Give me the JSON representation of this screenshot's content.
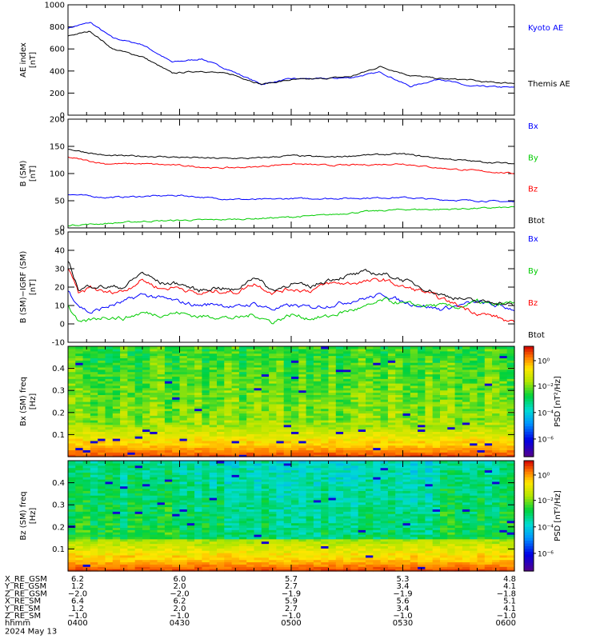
{
  "colors": {
    "kyoto": "#0000ff",
    "themis": "#000000",
    "bx": "#0000ff",
    "by": "#00cc00",
    "bz": "#ff0000",
    "btot": "#000000"
  },
  "time_axis": {
    "label": "hhmm",
    "date": "2024 May 13",
    "ticks": [
      "0400",
      "0430",
      "0500",
      "0530",
      "0600"
    ],
    "range": [
      "04:00",
      "06:00"
    ]
  },
  "ephemeris": [
    {
      "label": "X_RE_GSM",
      "values": [
        "6.2",
        "6.0",
        "5.7",
        "5.3",
        "4.8"
      ]
    },
    {
      "label": "Y_RE_GSM",
      "values": [
        "1.2",
        "2.0",
        "2.7",
        "3.4",
        "4.1"
      ]
    },
    {
      "label": "Z_RE_GSM",
      "values": [
        "−2.0",
        "−2.0",
        "−1.9",
        "−1.9",
        "−1.8"
      ]
    },
    {
      "label": "X_RE_SM",
      "values": [
        "6.4",
        "6.2",
        "5.9",
        "5.6",
        "5.1"
      ]
    },
    {
      "label": "Y_RE_SM",
      "values": [
        "1.2",
        "2.0",
        "2.7",
        "3.4",
        "4.1"
      ]
    },
    {
      "label": "Z_RE_SM",
      "values": [
        "−1.0",
        "−1.0",
        "−1.0",
        "−1.0",
        "−1.0"
      ]
    }
  ],
  "chart_data": [
    {
      "type": "line",
      "ylabel": "AE index [nT]",
      "ylim": [
        0,
        1000
      ],
      "yticks": [
        0,
        200,
        400,
        600,
        800,
        1000
      ],
      "x_minutes": [
        0,
        6,
        12,
        20,
        28,
        36,
        44,
        52,
        60,
        68,
        76,
        84,
        92,
        100,
        108,
        112,
        120
      ],
      "series": [
        {
          "name": "Kyoto AE",
          "color": "blue",
          "values": [
            790,
            840,
            700,
            640,
            480,
            510,
            400,
            280,
            330,
            330,
            340,
            390,
            260,
            330,
            260,
            260,
            250
          ]
        },
        {
          "name": "Themis AE",
          "color": "black",
          "values": [
            720,
            760,
            600,
            530,
            380,
            400,
            370,
            280,
            320,
            330,
            350,
            440,
            360,
            330,
            320,
            300,
            290
          ]
        }
      ]
    },
    {
      "type": "line",
      "ylabel": "B (SM) [nT]",
      "ylim": [
        0,
        200
      ],
      "yticks": [
        0,
        50,
        100,
        150,
        200
      ],
      "x_minutes": [
        0,
        10,
        20,
        30,
        40,
        50,
        60,
        70,
        80,
        90,
        100,
        110,
        120
      ],
      "series": [
        {
          "name": "Bx",
          "color": "blue",
          "values": [
            62,
            56,
            58,
            60,
            54,
            52,
            54,
            54,
            55,
            56,
            52,
            50,
            48
          ]
        },
        {
          "name": "By",
          "color": "green",
          "values": [
            5,
            8,
            12,
            14,
            15,
            17,
            20,
            24,
            30,
            34,
            34,
            36,
            38
          ]
        },
        {
          "name": "Bz",
          "color": "red",
          "values": [
            130,
            118,
            118,
            115,
            110,
            112,
            118,
            115,
            116,
            118,
            110,
            105,
            100
          ]
        },
        {
          "name": "Btot",
          "color": "black",
          "values": [
            145,
            133,
            132,
            130,
            128,
            128,
            133,
            130,
            134,
            136,
            128,
            122,
            118
          ]
        }
      ]
    },
    {
      "type": "line",
      "ylabel": "B (SM)−IGRF (SM) [nT]",
      "ylim": [
        -10,
        50
      ],
      "yticks": [
        -10,
        0,
        10,
        20,
        30,
        40,
        50
      ],
      "x_minutes": [
        0,
        3,
        6,
        10,
        15,
        20,
        25,
        30,
        35,
        40,
        45,
        50,
        55,
        60,
        65,
        70,
        75,
        80,
        85,
        90,
        95,
        100,
        105,
        110,
        115,
        120
      ],
      "series": [
        {
          "name": "Bx",
          "color": "blue",
          "values": [
            18,
            10,
            6,
            9,
            12,
            16,
            14,
            12,
            10,
            11,
            9,
            11,
            8,
            10,
            9,
            10,
            12,
            14,
            16,
            12,
            10,
            8,
            10,
            12,
            10,
            8
          ]
        },
        {
          "name": "By",
          "color": "green",
          "values": [
            10,
            0,
            2,
            4,
            3,
            6,
            5,
            6,
            4,
            4,
            3,
            5,
            1,
            5,
            3,
            4,
            7,
            9,
            13,
            11,
            10,
            10,
            9,
            12,
            10,
            12
          ]
        },
        {
          "name": "Bz",
          "color": "red",
          "values": [
            30,
            16,
            20,
            17,
            18,
            24,
            19,
            20,
            16,
            18,
            17,
            22,
            17,
            19,
            18,
            22,
            22,
            23,
            24,
            20,
            18,
            14,
            10,
            6,
            4,
            0
          ]
        },
        {
          "name": "Btot",
          "color": "black",
          "values": [
            35,
            18,
            21,
            20,
            20,
            28,
            22,
            22,
            18,
            20,
            18,
            26,
            18,
            22,
            20,
            24,
            26,
            28,
            27,
            24,
            20,
            16,
            14,
            12,
            12,
            10
          ]
        }
      ]
    },
    {
      "type": "heatmap",
      "ylabel": "Bx (SM) freq [Hz]",
      "yticks": [
        "0.1",
        "0.2",
        "0.3",
        "0.4"
      ],
      "ylim": [
        0,
        0.5
      ],
      "colorbar_label": "PSD [nT²/Hz]",
      "colorbar_ticks": [
        "10⁰",
        "10⁻²",
        "10⁻⁴",
        "10⁻⁶"
      ]
    },
    {
      "type": "heatmap",
      "ylabel": "Bz (SM) freq [Hz]",
      "yticks": [
        "0.1",
        "0.2",
        "0.3",
        "0.4"
      ],
      "ylim": [
        0,
        0.5
      ],
      "colorbar_label": "PSD [nT²/Hz]",
      "colorbar_ticks": [
        "10⁰",
        "10⁻²",
        "10⁻⁴",
        "10⁻⁶"
      ]
    }
  ]
}
